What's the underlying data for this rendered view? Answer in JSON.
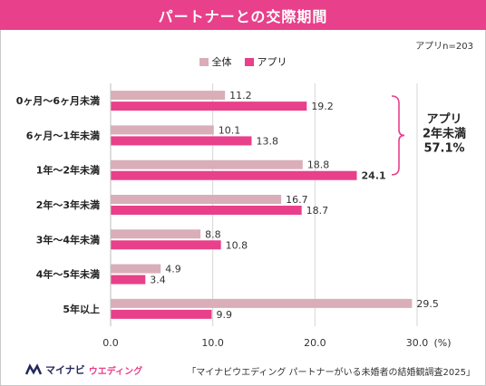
{
  "title": "パートナーとの交際期間",
  "sample_note": "アプリn=203",
  "annotation": {
    "line1": "アプリ",
    "line2": "2年未満",
    "line3": "57.1%"
  },
  "logo": {
    "brand": "マイナビ",
    "sub": "ウエディング"
  },
  "source": "「マイナビウエディング パートナーがいる未婚者の結婚観調査2025」",
  "colors": {
    "all": "#d9aeb8",
    "app": "#e8408a",
    "title_bg": "#e8408a",
    "bracket": "#e8408a"
  },
  "chart_data": {
    "type": "bar",
    "orientation": "horizontal",
    "categories": [
      "0ヶ月〜6ヶ月未満",
      "6ヶ月〜1年未満",
      "1年〜2年未満",
      "2年〜3年未満",
      "3年〜4年未満",
      "4年〜5年未満",
      "5年以上"
    ],
    "series": [
      {
        "name": "全体",
        "values": [
          11.2,
          10.1,
          18.8,
          16.7,
          8.8,
          4.9,
          29.5
        ],
        "labels": [
          "11.2",
          "10.1",
          "18.8",
          "16.7",
          "8.8",
          "4.9",
          "29.5"
        ]
      },
      {
        "name": "アプリ",
        "values": [
          19.2,
          13.8,
          24.1,
          18.7,
          10.8,
          3.4,
          9.9
        ],
        "labels": [
          "19.2",
          "13.8",
          "24.1",
          "18.7",
          "10.8",
          "3.4",
          "9.9"
        ]
      }
    ],
    "xlim": [
      0,
      30
    ],
    "xticks": [
      "0.0",
      "10.0",
      "20.0",
      "30.0"
    ],
    "xunit": "(%)",
    "bold_label": {
      "series": 1,
      "category": 2
    },
    "grid": true,
    "legend": "top-center"
  }
}
